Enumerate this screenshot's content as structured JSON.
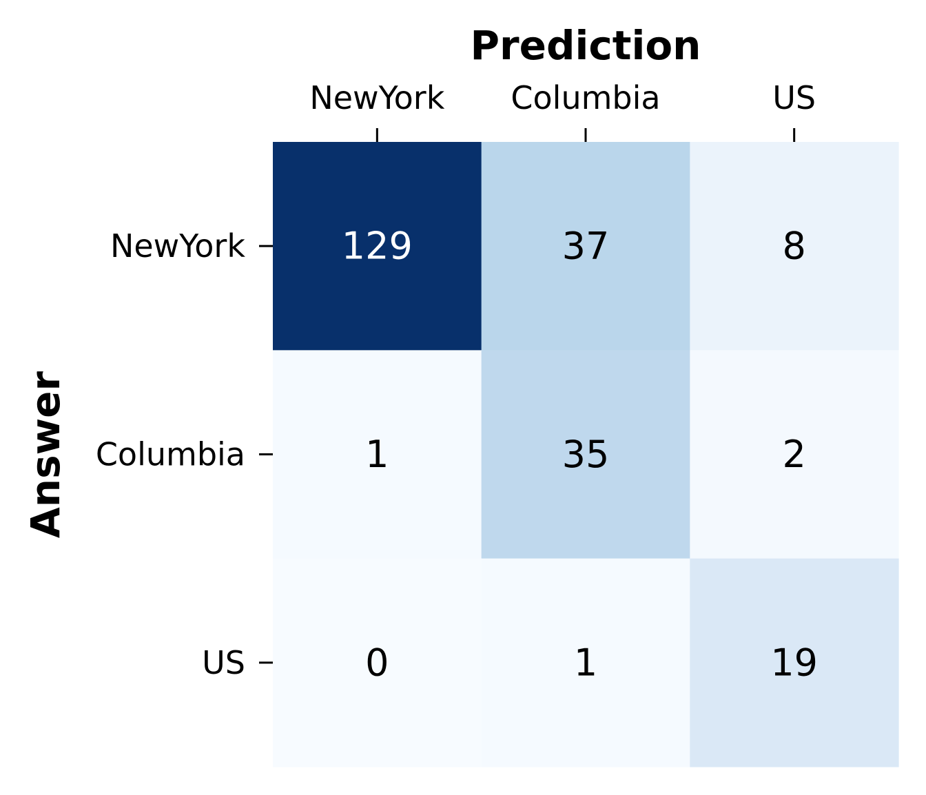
{
  "chart_data": {
    "type": "heatmap",
    "xlabel": "Prediction",
    "ylabel": "Answer",
    "x_categories": [
      "NewYork",
      "Columbia",
      "US"
    ],
    "y_categories": [
      "NewYork",
      "Columbia",
      "US"
    ],
    "values": [
      [
        129,
        37,
        8
      ],
      [
        1,
        35,
        2
      ],
      [
        0,
        1,
        19
      ]
    ],
    "colormap": "Blues",
    "x_tick_position": "top",
    "colorbar": false
  }
}
